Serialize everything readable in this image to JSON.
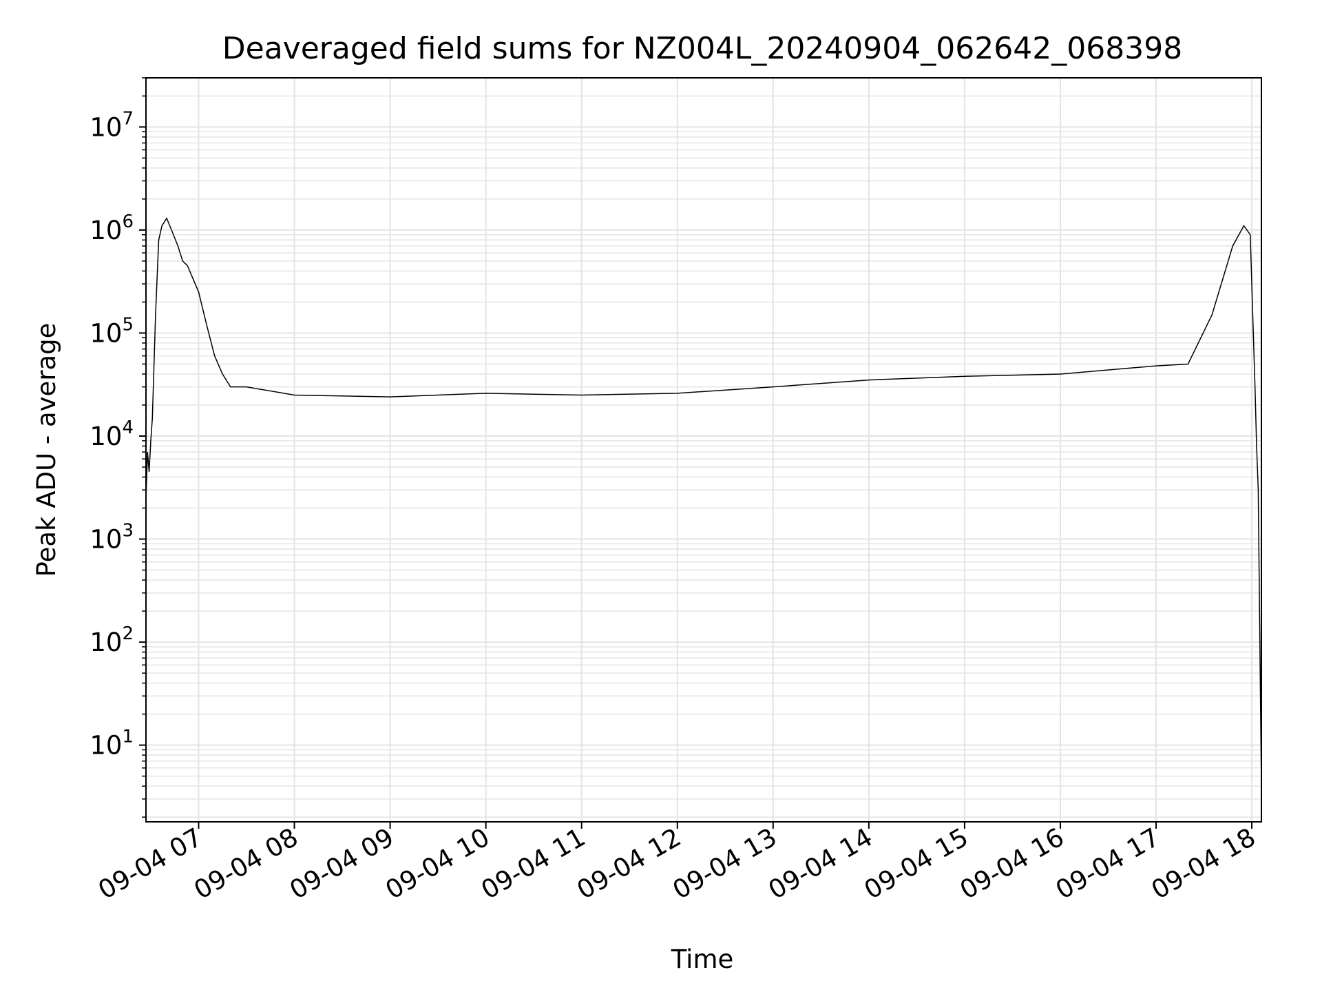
{
  "chart_data": {
    "type": "line",
    "title": "Deaveraged field sums for NZ004L_20240904_062642_068398",
    "xlabel": "Time",
    "ylabel": "Peak ADU - average",
    "yscale": "log",
    "ylim": [
      1.8,
      30000000
    ],
    "xlim": [
      "2024-09-04 06:27",
      "2024-09-04 18:06"
    ],
    "grid": true,
    "line_color": "#000000",
    "grid_color": "#e4e4e4",
    "x_ticks": [
      {
        "value": "2024-09-04 07:00",
        "label": "09-04 07"
      },
      {
        "value": "2024-09-04 08:00",
        "label": "09-04 08"
      },
      {
        "value": "2024-09-04 09:00",
        "label": "09-04 09"
      },
      {
        "value": "2024-09-04 10:00",
        "label": "09-04 10"
      },
      {
        "value": "2024-09-04 11:00",
        "label": "09-04 11"
      },
      {
        "value": "2024-09-04 12:00",
        "label": "09-04 12"
      },
      {
        "value": "2024-09-04 13:00",
        "label": "09-04 13"
      },
      {
        "value": "2024-09-04 14:00",
        "label": "09-04 14"
      },
      {
        "value": "2024-09-04 15:00",
        "label": "09-04 15"
      },
      {
        "value": "2024-09-04 16:00",
        "label": "09-04 16"
      },
      {
        "value": "2024-09-04 17:00",
        "label": "09-04 17"
      },
      {
        "value": "2024-09-04 18:00",
        "label": "09-04 18"
      }
    ],
    "y_ticks": [
      {
        "value": 10,
        "base": "10",
        "exp": "1"
      },
      {
        "value": 100,
        "base": "10",
        "exp": "2"
      },
      {
        "value": 1000,
        "base": "10",
        "exp": "3"
      },
      {
        "value": 10000,
        "base": "10",
        "exp": "4"
      },
      {
        "value": 100000,
        "base": "10",
        "exp": "5"
      },
      {
        "value": 1000000,
        "base": "10",
        "exp": "6"
      },
      {
        "value": 10000000,
        "base": "10",
        "exp": "7"
      }
    ],
    "series": [
      {
        "values_note_free": true,
        "x": [
          "2024-09-04 06:27",
          "2024-09-04 06:28",
          "2024-09-04 06:29",
          "2024-09-04 06:30",
          "2024-09-04 06:31",
          "2024-09-04 06:33",
          "2024-09-04 06:35",
          "2024-09-04 06:37",
          "2024-09-04 06:40",
          "2024-09-04 06:43",
          "2024-09-04 06:47",
          "2024-09-04 06:50",
          "2024-09-04 06:53",
          "2024-09-04 06:56",
          "2024-09-04 07:00",
          "2024-09-04 07:05",
          "2024-09-04 07:10",
          "2024-09-04 07:15",
          "2024-09-04 07:20",
          "2024-09-04 07:30",
          "2024-09-04 08:00",
          "2024-09-04 09:00",
          "2024-09-04 10:00",
          "2024-09-04 11:00",
          "2024-09-04 12:00",
          "2024-09-04 13:00",
          "2024-09-04 14:00",
          "2024-09-04 15:00",
          "2024-09-04 16:00",
          "2024-09-04 17:00",
          "2024-09-04 17:20",
          "2024-09-04 17:35",
          "2024-09-04 17:48",
          "2024-09-04 17:55",
          "2024-09-04 17:59",
          "2024-09-04 18:02",
          "2024-09-04 18:03",
          "2024-09-04 18:04",
          "2024-09-04 18:06"
        ],
        "y": [
          2500,
          7000,
          4500,
          9000,
          15000,
          150000,
          800000,
          1100000,
          1300000,
          1000000,
          700000,
          500000,
          450000,
          350000,
          250000,
          120000,
          60000,
          40000,
          30000,
          30000,
          25000,
          24000,
          26000,
          25000,
          26000,
          30000,
          35000,
          38000,
          40000,
          48000,
          50000,
          150000,
          700000,
          1100000,
          900000,
          30000,
          8000,
          3000,
          4
        ]
      }
    ]
  }
}
